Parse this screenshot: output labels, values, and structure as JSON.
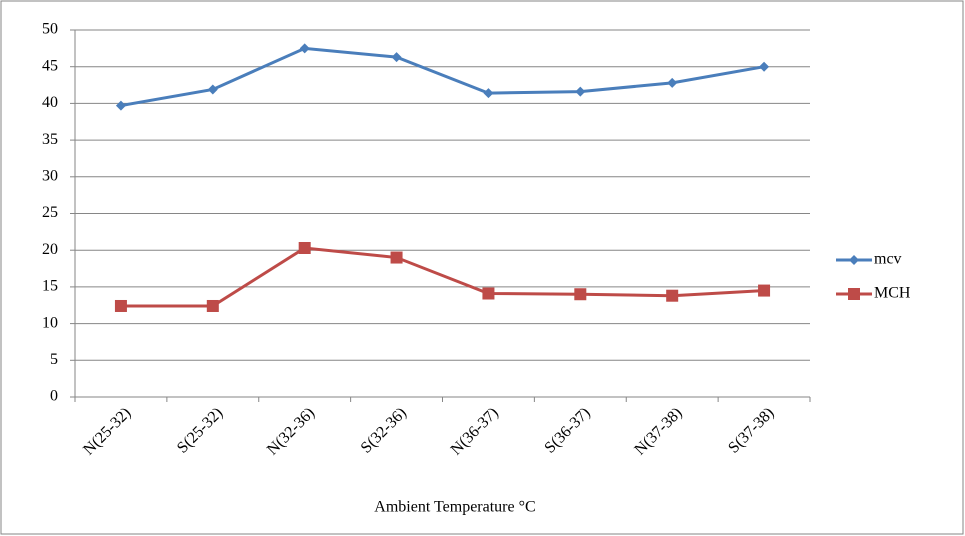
{
  "chart_data": {
    "type": "line",
    "categories": [
      "N(25-32)",
      "S(25-32)",
      "N(32-36)",
      "S(32-36)",
      "N(36-37)",
      "S(36-37)",
      "N(37-38)",
      "S(37-38)"
    ],
    "series": [
      {
        "name": "mcv",
        "color": "#4a7ebb",
        "marker": "diamond",
        "values": [
          39.7,
          41.9,
          47.5,
          46.3,
          41.4,
          41.6,
          42.8,
          45.0
        ]
      },
      {
        "name": "MCH",
        "color": "#be4b48",
        "marker": "square",
        "values": [
          12.4,
          12.4,
          20.3,
          19.0,
          14.1,
          14.0,
          13.8,
          14.5
        ]
      }
    ],
    "xlabel": "Ambient Temperature °C",
    "ylim": [
      0,
      50
    ],
    "yticks": [
      0,
      5,
      10,
      15,
      20,
      25,
      30,
      35,
      40,
      45,
      50
    ],
    "grid": true,
    "legend": "right"
  }
}
